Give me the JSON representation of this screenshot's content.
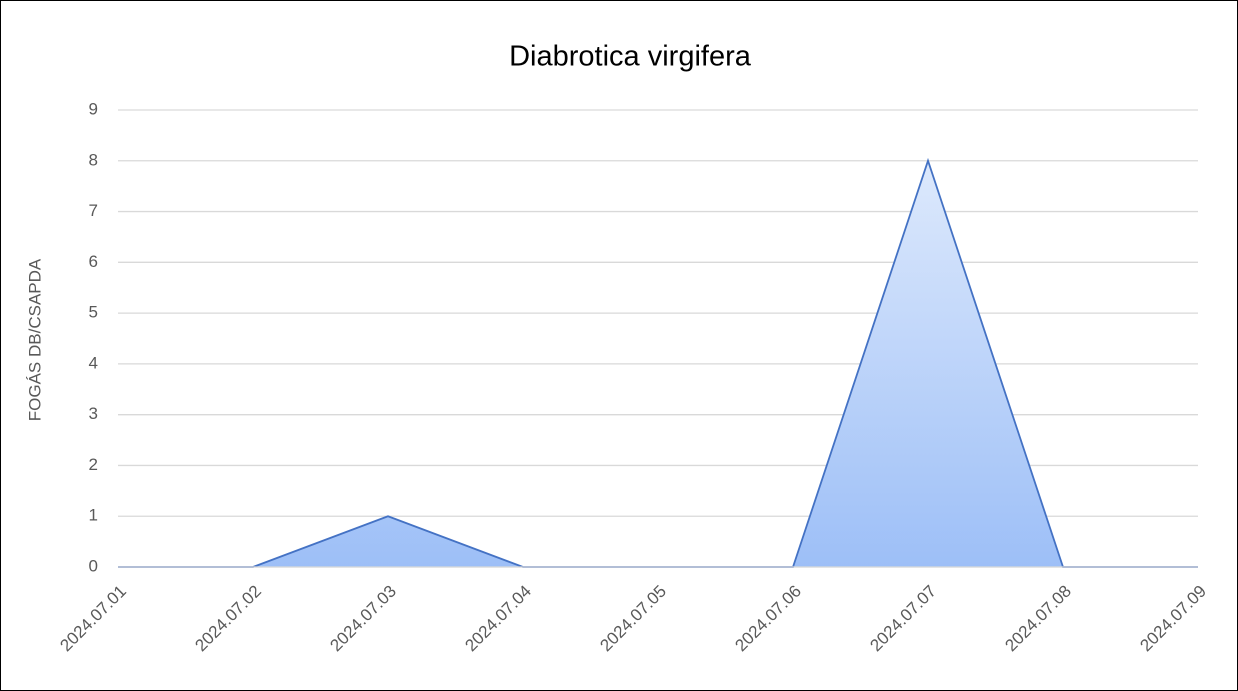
{
  "chart_data": {
    "type": "area",
    "title": "Diabrotica virgifera",
    "y_label": "FOGÁS DB/CSAPDA",
    "categories": [
      "2024.07.01",
      "2024.07.02",
      "2024.07.03",
      "2024.07.04",
      "2024.07.05",
      "2024.07.06",
      "2024.07.07",
      "2024.07.08",
      "2024.07.09"
    ],
    "series": [
      {
        "name": "Diabrotica virgifera",
        "color": "#4472c4",
        "values": [
          0,
          0,
          1,
          0,
          0,
          0,
          8,
          0,
          0
        ]
      }
    ],
    "ylim": [
      0,
      9
    ],
    "yticks": [
      0,
      1,
      2,
      3,
      4,
      5,
      6,
      7,
      8,
      9
    ],
    "grid": true
  }
}
